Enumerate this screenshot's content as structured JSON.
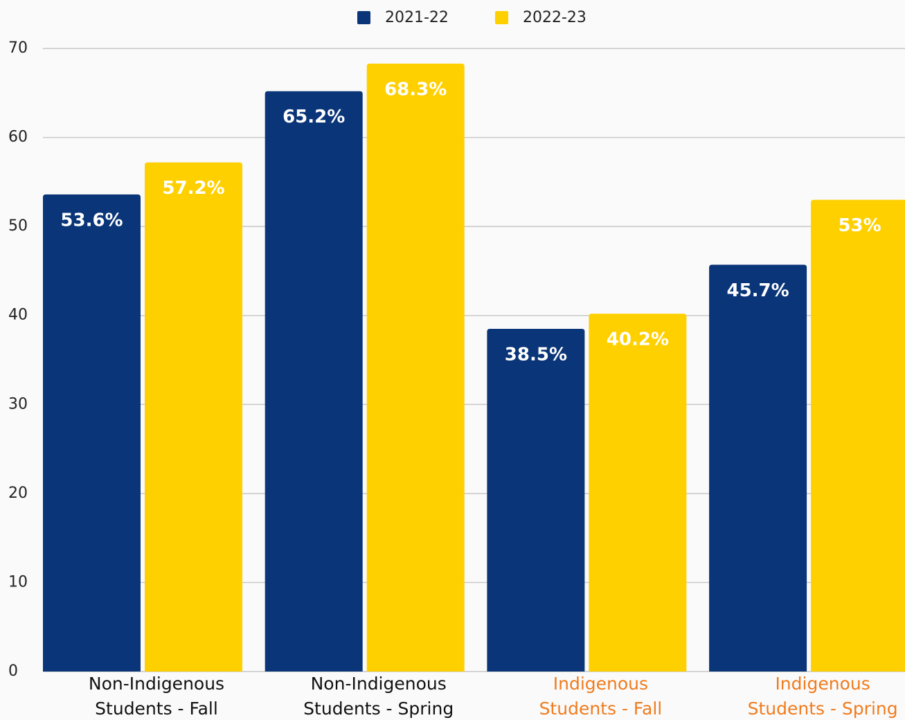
{
  "chart_data": {
    "type": "bar",
    "categories": [
      "Non-Indigenous Students - Fall",
      "Non-Indigenous Students - Spring",
      "Indigenous Students - Fall",
      "Indigenous Students - Spring"
    ],
    "category_colors": [
      "#111111",
      "#111111",
      "#f07c1e",
      "#f07c1e"
    ],
    "series": [
      {
        "name": "2021-22",
        "color": "#0a3578",
        "values": [
          53.6,
          65.2,
          38.5,
          45.7
        ],
        "value_labels": [
          "53.6%",
          "65.2%",
          "38.5%",
          "45.7%"
        ]
      },
      {
        "name": "2022-23",
        "color": "#ffd000",
        "values": [
          57.2,
          68.3,
          40.2,
          53
        ],
        "value_labels": [
          "57.2%",
          "68.3%",
          "40.2%",
          "53%"
        ]
      }
    ],
    "ylim": [
      0,
      70
    ],
    "yticks": [
      0,
      10,
      20,
      30,
      40,
      50,
      60,
      70
    ],
    "grid": true,
    "legend": "top"
  }
}
